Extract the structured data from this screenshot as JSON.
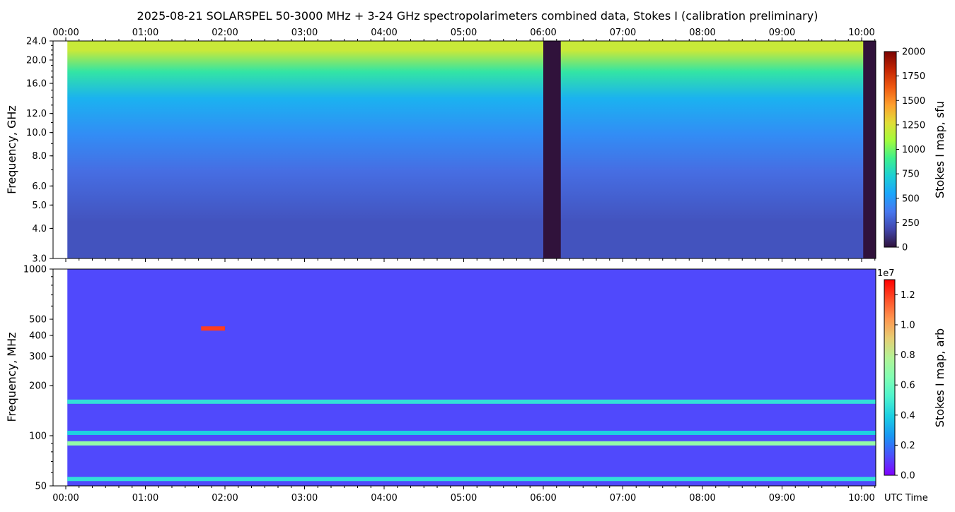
{
  "title": "2025-08-21  SOLARSPEL  50-3000 MHz  +  3-24 GHz  spectropolarimeters combined data,  Stokes I  (calibration preliminary)",
  "x_axis": {
    "tick_labels": [
      "00:00",
      "01:00",
      "02:00",
      "03:00",
      "04:00",
      "05:00",
      "06:00",
      "07:00",
      "08:00",
      "09:00",
      "10:00"
    ],
    "range_hours": [
      0,
      10.2
    ],
    "label": "UTC Time"
  },
  "chart_data": [
    {
      "type": "heatmap",
      "ylabel": "Frequency, GHz",
      "y_scale": "log",
      "ylim": [
        3.0,
        24.0
      ],
      "yticks": [
        "3.0",
        "4.0",
        "5.0",
        "6.0",
        "8.0",
        "10.0",
        "12.0",
        "16.0",
        "20.0",
        "24.0"
      ],
      "colorbar": {
        "label": "Stokes I map, sfu",
        "range": [
          0,
          2000
        ],
        "ticks": [
          "0",
          "250",
          "500",
          "750",
          "1000",
          "1250",
          "1500",
          "1750",
          "2000"
        ],
        "colormap": "turbo"
      },
      "data_start_hour": 0.02,
      "gaps_hours": [
        [
          6.0,
          6.22
        ],
        [
          10.02,
          10.2
        ]
      ],
      "bands": [
        {
          "freq_ghz": [
            20.0,
            24.0
          ],
          "value": 1200
        },
        {
          "freq_ghz": [
            16.0,
            20.0
          ],
          "value": 850
        },
        {
          "freq_ghz": [
            12.0,
            16.0
          ],
          "value": 600
        },
        {
          "freq_ghz": [
            8.0,
            12.0
          ],
          "value": 450
        },
        {
          "freq_ghz": [
            6.0,
            8.0
          ],
          "value": 330
        },
        {
          "freq_ghz": [
            3.0,
            6.0
          ],
          "value": 230
        }
      ]
    },
    {
      "type": "heatmap",
      "ylabel": "Frequency, MHz",
      "y_scale": "log",
      "ylim": [
        50,
        1000
      ],
      "yticks": [
        "50",
        "100",
        "200",
        "300",
        "400",
        "500",
        "1000"
      ],
      "colorbar": {
        "label": "Stokes I map, arb",
        "range": [
          0.0,
          1.3
        ],
        "multiplier": "1e7",
        "ticks": [
          "0.0",
          "0.2",
          "0.4",
          "0.6",
          "0.8",
          "1.0",
          "1.2"
        ],
        "colormap": "rainbow"
      },
      "data_start_hour": 0.02,
      "background_value": 0.12,
      "lines": [
        {
          "freq_mhz": 55,
          "value": 0.45
        },
        {
          "freq_mhz": 90,
          "value": 0.7
        },
        {
          "freq_mhz": 104,
          "value": 0.4
        },
        {
          "freq_mhz": 160,
          "value": 0.45
        },
        {
          "freq_mhz": 440,
          "value": 1.2,
          "hours": [
            1.7,
            2.0
          ]
        }
      ]
    }
  ],
  "colors": {
    "turbo": [
      "#30123b",
      "#4146ac",
      "#4777ef",
      "#1ba5fc",
      "#1ccfd5",
      "#3ef08d",
      "#a2fc3c",
      "#e1dd37",
      "#fe9f2d",
      "#ef5911",
      "#c22403",
      "#7a0403"
    ],
    "rainbow": [
      "#8000ff",
      "#4c4ffc",
      "#1996f3",
      "#1acee3",
      "#4df3ce",
      "#80feb3",
      "#b2f396",
      "#e6ce74",
      "#ff964f",
      "#ff4f28",
      "#ff0000"
    ]
  }
}
